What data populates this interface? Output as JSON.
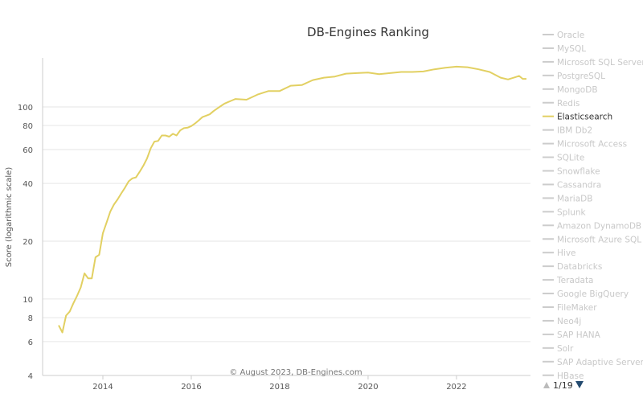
{
  "chart_data": {
    "type": "line",
    "title": "DB-Engines Ranking",
    "ylabel": "Score (logarithmic scale)",
    "xlabel": "",
    "y_scale": "log",
    "ylim": [
      4,
      180
    ],
    "xlim": [
      "2013-01",
      "2023-08"
    ],
    "y_ticks": [
      4,
      6,
      8,
      10,
      20,
      40,
      60,
      80,
      100
    ],
    "x_ticks": [
      "2014",
      "2016",
      "2018",
      "2020",
      "2022"
    ],
    "grid": true,
    "legend_placement": "right",
    "credit": "© August 2023, DB-Engines.com",
    "legend_pager": "1/19",
    "active_color": "#e2d062",
    "inactive_color": "#cccccc",
    "legend": [
      {
        "name": "Oracle",
        "active": false
      },
      {
        "name": "MySQL",
        "active": false
      },
      {
        "name": "Microsoft SQL Server",
        "active": false
      },
      {
        "name": "PostgreSQL",
        "active": false
      },
      {
        "name": "MongoDB",
        "active": false
      },
      {
        "name": "Redis",
        "active": false
      },
      {
        "name": "Elasticsearch",
        "active": true
      },
      {
        "name": "IBM Db2",
        "active": false
      },
      {
        "name": "Microsoft Access",
        "active": false
      },
      {
        "name": "SQLite",
        "active": false
      },
      {
        "name": "Snowflake",
        "active": false
      },
      {
        "name": "Cassandra",
        "active": false
      },
      {
        "name": "MariaDB",
        "active": false
      },
      {
        "name": "Splunk",
        "active": false
      },
      {
        "name": "Amazon DynamoDB",
        "active": false
      },
      {
        "name": "Microsoft Azure SQL",
        "active": false
      },
      {
        "name": "Hive",
        "active": false
      },
      {
        "name": "Databricks",
        "active": false
      },
      {
        "name": "Teradata",
        "active": false
      },
      {
        "name": "Google BigQuery",
        "active": false
      },
      {
        "name": "FileMaker",
        "active": false
      },
      {
        "name": "Neo4j",
        "active": false
      },
      {
        "name": "SAP HANA",
        "active": false
      },
      {
        "name": "Solr",
        "active": false
      },
      {
        "name": "SAP Adaptive Server",
        "active": false
      },
      {
        "name": "HBase",
        "active": false
      }
    ],
    "series": [
      {
        "name": "Elasticsearch",
        "x": [
          "2013-01",
          "2013-02",
          "2013-03",
          "2013-04",
          "2013-05",
          "2013-06",
          "2013-07",
          "2013-08",
          "2013-09",
          "2013-10",
          "2013-11",
          "2013-12",
          "2014-01",
          "2014-02",
          "2014-03",
          "2014-04",
          "2014-05",
          "2014-06",
          "2014-07",
          "2014-08",
          "2014-09",
          "2014-10",
          "2014-11",
          "2014-12",
          "2015-01",
          "2015-02",
          "2015-03",
          "2015-04",
          "2015-05",
          "2015-06",
          "2015-07",
          "2015-08",
          "2015-09",
          "2015-10",
          "2015-11",
          "2015-12",
          "2016-01",
          "2016-02",
          "2016-03",
          "2016-04",
          "2016-05",
          "2016-06",
          "2016-07",
          "2016-08",
          "2016-09",
          "2016-10",
          "2016-11",
          "2016-12",
          "2017-01",
          "2017-04",
          "2017-07",
          "2017-10",
          "2018-01",
          "2018-04",
          "2018-07",
          "2018-10",
          "2019-01",
          "2019-04",
          "2019-07",
          "2019-10",
          "2020-01",
          "2020-04",
          "2020-07",
          "2020-10",
          "2021-01",
          "2021-04",
          "2021-07",
          "2021-10",
          "2022-01",
          "2022-04",
          "2022-07",
          "2022-10",
          "2023-01",
          "2023-03",
          "2023-05",
          "2023-06",
          "2023-07",
          "2023-08"
        ],
        "values": [
          7.3,
          6.7,
          8.2,
          8.6,
          9.5,
          10.4,
          11.5,
          13.6,
          12.8,
          12.8,
          16.5,
          17.0,
          22.0,
          25.0,
          28.5,
          31.0,
          33.0,
          35.5,
          38.0,
          41.0,
          42.5,
          43.0,
          46.0,
          49.5,
          54.0,
          61.0,
          66.0,
          66.5,
          71.0,
          71.0,
          70.0,
          72.5,
          71.0,
          75.5,
          77.5,
          78.0,
          79.5,
          82.0,
          85.0,
          88.5,
          90.0,
          91.5,
          95.0,
          98.0,
          101.0,
          104.0,
          106.0,
          108.0,
          110.0,
          109.0,
          116.0,
          121.0,
          121.0,
          129.0,
          130.0,
          138.0,
          142.0,
          144.0,
          149.0,
          150.0,
          151.0,
          148.0,
          150.0,
          152.0,
          152.0,
          153.0,
          157.0,
          160.0,
          162.0,
          161.0,
          157.0,
          152.0,
          142.0,
          139.0,
          143.0,
          145.0,
          140.0,
          140.0
        ]
      }
    ]
  }
}
